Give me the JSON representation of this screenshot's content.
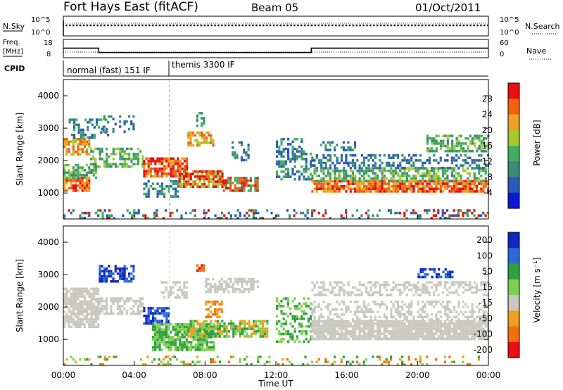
{
  "header": {
    "station": "Fort Hays East (fitACF)",
    "beam": "Beam 05",
    "date": "01/Oct/2011"
  },
  "strip_labels": {
    "nsky": "N.Sky",
    "nsky_ticks": [
      "10^5",
      "10^0"
    ],
    "nsearch": "N.Search",
    "nsearch_ticks": [
      "10^5",
      "10^0"
    ],
    "freq": "Freq.",
    "freq_unit": "[MHz]",
    "freq_ticks": [
      "18",
      "8"
    ],
    "nave": "Nave",
    "nave_ticks": [
      "60",
      "0"
    ],
    "cpid": "CPID",
    "cpid_segments": [
      "normal (fast) 151 IF",
      "themis 3300 IF"
    ]
  },
  "chart_data": [
    {
      "type": "line",
      "panel": "frequency",
      "x_label": "",
      "y_ticks": [
        18,
        8
      ],
      "x": [
        "00:00",
        "02:00",
        "02:00",
        "14:00",
        "14:00",
        "24:00"
      ],
      "series": [
        {
          "name": "Freq.",
          "values": [
            13.5,
            13.5,
            10.5,
            10.5,
            13.5,
            13.5
          ]
        }
      ]
    },
    {
      "type": "heatmap",
      "panel": "power",
      "ylabel": "Slant Range [km]",
      "y_ticks": [
        1000,
        2000,
        3000,
        4000
      ],
      "ylim": [
        200,
        4500
      ],
      "colorbar_label": "Power [dB]",
      "colorbar_ticks": [
        4,
        8,
        12,
        16,
        20,
        24,
        28
      ],
      "colors": [
        "#0a18d8",
        "#2a5ab8",
        "#3c8a78",
        "#40b060",
        "#a8c830",
        "#f0a020",
        "#f06010",
        "#e81010"
      ]
    },
    {
      "type": "heatmap",
      "panel": "velocity",
      "ylabel": "Slant Range [km]",
      "y_ticks": [
        1000,
        2000,
        3000,
        4000
      ],
      "ylim": [
        200,
        4500
      ],
      "colorbar_label": "Velocity [m s⁻¹]",
      "colorbar_ticks": [
        200,
        100,
        50,
        15,
        -15,
        -50,
        -100,
        -200
      ],
      "colors": [
        "#1028c0",
        "#2c6ad8",
        "#30a040",
        "#80d050",
        "#c8c8c0",
        "#f0a020",
        "#f07010",
        "#e81010"
      ]
    }
  ],
  "time_axis": {
    "ticks": [
      "00:00",
      "04:00",
      "08:00",
      "12:00",
      "16:00",
      "20:00",
      "00:00"
    ],
    "label": "Time UT"
  }
}
